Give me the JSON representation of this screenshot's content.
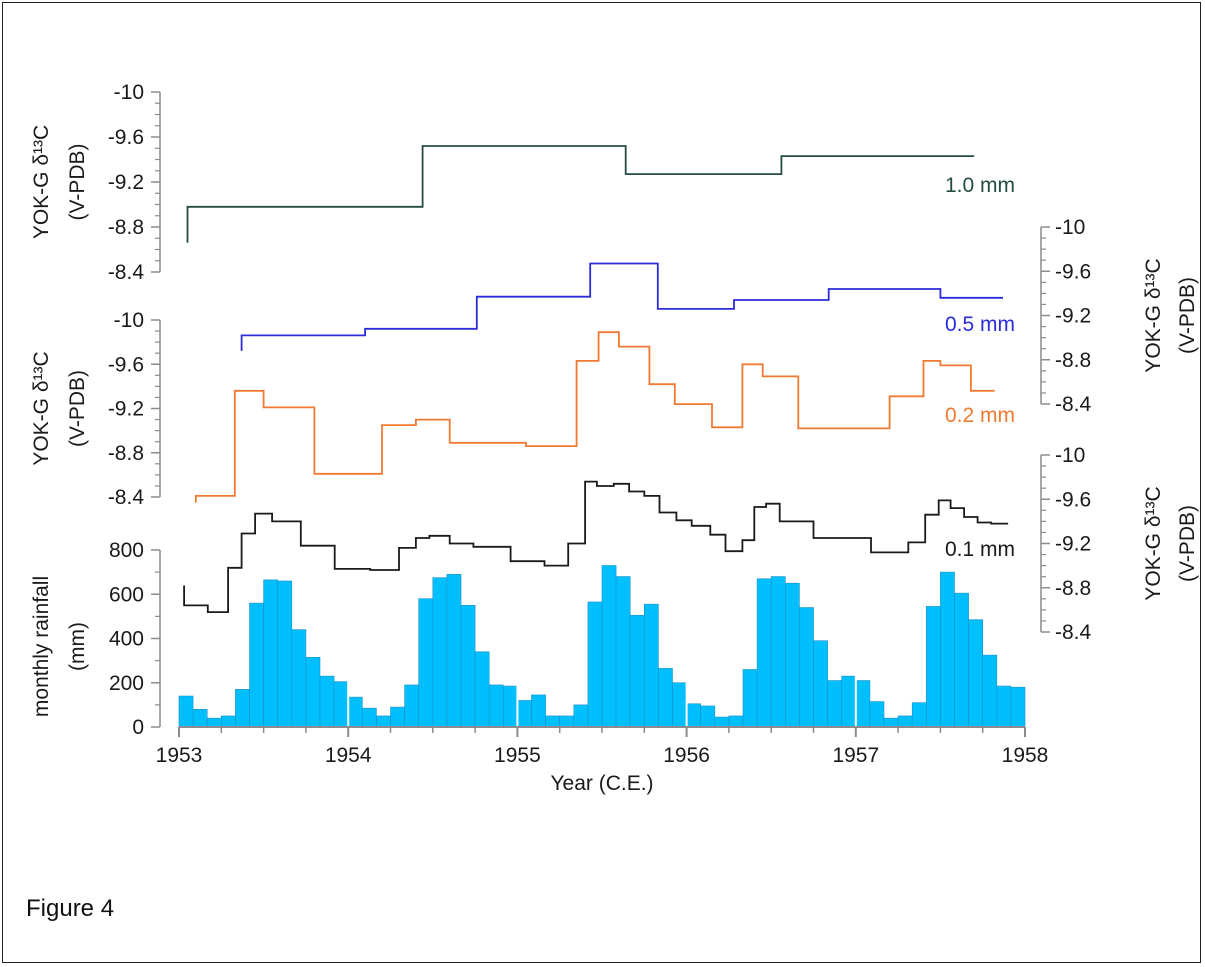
{
  "figure_label": "Figure 4",
  "colors": {
    "axis": "#8c8c8c",
    "text": "#1a1a1a"
  },
  "chart_data": {
    "type": "line",
    "xlabel": "Year (C.E.)",
    "x_ticks": [
      "1953",
      "1954",
      "1955",
      "1956",
      "1957",
      "1958"
    ],
    "xlim": [
      1953,
      1958
    ],
    "rainfall": {
      "type": "bar",
      "ylabel_lines": [
        "monthly rainfall",
        "(mm)"
      ],
      "y_ticks": [
        "0",
        "200",
        "400",
        "600",
        "800"
      ],
      "ylim": [
        0,
        800
      ],
      "color": "#00bfff",
      "monthly_values": [
        140,
        80,
        40,
        50,
        170,
        560,
        665,
        660,
        440,
        315,
        230,
        205,
        135,
        85,
        50,
        90,
        190,
        580,
        675,
        690,
        550,
        340,
        190,
        185,
        120,
        145,
        50,
        50,
        100,
        565,
        730,
        680,
        505,
        555,
        265,
        200,
        105,
        95,
        45,
        50,
        260,
        670,
        680,
        650,
        540,
        390,
        210,
        230,
        210,
        115,
        40,
        50,
        110,
        545,
        700,
        605,
        485,
        325,
        185,
        180
      ]
    },
    "series": [
      {
        "name": "1.0 mm",
        "label": "1.0 mm",
        "color": "#244c44",
        "axis": "top-left",
        "x": [
          1953.05,
          1953.05,
          1954.44,
          1954.44,
          1955.64,
          1955.64,
          1956.56,
          1956.56,
          1957.7
        ],
        "y": [
          -8.66,
          -8.98,
          -8.98,
          -9.52,
          -9.52,
          -9.27,
          -9.27,
          -9.43,
          -9.43
        ]
      },
      {
        "name": "0.5 mm",
        "label": "0.5 mm",
        "color": "#2b2bd9",
        "axis": "right-middle",
        "x": [
          1953.37,
          1953.37,
          1954.1,
          1954.1,
          1954.76,
          1954.76,
          1955.43,
          1955.43,
          1955.83,
          1955.83,
          1956.28,
          1956.28,
          1956.84,
          1956.84,
          1957.5,
          1957.5,
          1957.87
        ],
        "y": [
          -8.88,
          -9.02,
          -9.02,
          -9.08,
          -9.08,
          -9.37,
          -9.37,
          -9.67,
          -9.67,
          -9.26,
          -9.26,
          -9.34,
          -9.34,
          -9.44,
          -9.44,
          -9.36,
          -9.36
        ]
      },
      {
        "name": "0.2 mm",
        "label": "0.2 mm",
        "color": "#f07a32",
        "axis": "middle-left",
        "x": [
          1953.1,
          1953.1,
          1953.33,
          1953.33,
          1953.5,
          1953.5,
          1953.8,
          1953.8,
          1954.2,
          1954.2,
          1954.4,
          1954.4,
          1954.6,
          1954.6,
          1955.05,
          1955.05,
          1955.35,
          1955.35,
          1955.48,
          1955.48,
          1955.6,
          1955.6,
          1955.78,
          1955.78,
          1955.93,
          1955.93,
          1956.15,
          1956.15,
          1956.33,
          1956.33,
          1956.45,
          1956.45,
          1956.66,
          1956.66,
          1957.2,
          1957.2,
          1957.4,
          1957.4,
          1957.5,
          1957.5,
          1957.68,
          1957.68,
          1957.82
        ],
        "y": [
          -8.35,
          -8.41,
          -8.41,
          -9.36,
          -9.36,
          -9.21,
          -9.21,
          -8.61,
          -8.61,
          -9.05,
          -9.05,
          -9.1,
          -9.1,
          -8.89,
          -8.89,
          -8.86,
          -8.86,
          -9.63,
          -9.63,
          -9.89,
          -9.89,
          -9.76,
          -9.76,
          -9.42,
          -9.42,
          -9.24,
          -9.24,
          -9.03,
          -9.03,
          -9.6,
          -9.6,
          -9.49,
          -9.49,
          -9.02,
          -9.02,
          -9.31,
          -9.31,
          -9.63,
          -9.63,
          -9.59,
          -9.59,
          -9.36,
          -9.36
        ]
      },
      {
        "name": "0.1 mm",
        "label": "0.1 mm",
        "color": "#1a1a1a",
        "axis": "right-bottom",
        "x": [
          1953.03,
          1953.03,
          1953.17,
          1953.17,
          1953.29,
          1953.29,
          1953.37,
          1953.37,
          1953.45,
          1953.45,
          1953.55,
          1953.55,
          1953.72,
          1953.72,
          1953.92,
          1953.92,
          1954.13,
          1954.13,
          1954.3,
          1954.3,
          1954.4,
          1954.4,
          1954.48,
          1954.48,
          1954.6,
          1954.6,
          1954.74,
          1954.74,
          1954.96,
          1954.96,
          1955.16,
          1955.16,
          1955.3,
          1955.3,
          1955.4,
          1955.4,
          1955.47,
          1955.47,
          1955.57,
          1955.57,
          1955.66,
          1955.66,
          1955.75,
          1955.75,
          1955.84,
          1955.84,
          1955.94,
          1955.94,
          1956.03,
          1956.03,
          1956.14,
          1956.14,
          1956.23,
          1956.23,
          1956.33,
          1956.33,
          1956.4,
          1956.4,
          1956.47,
          1956.47,
          1956.55,
          1956.55,
          1956.75,
          1956.75,
          1957.09,
          1957.09,
          1957.31,
          1957.31,
          1957.41,
          1957.41,
          1957.49,
          1957.49,
          1957.56,
          1957.56,
          1957.64,
          1957.64,
          1957.72,
          1957.72,
          1957.8,
          1957.8,
          1957.9
        ],
        "y": [
          -8.82,
          -8.64,
          -8.64,
          -8.58,
          -8.58,
          -8.98,
          -8.98,
          -9.29,
          -9.29,
          -9.47,
          -9.47,
          -9.4,
          -9.4,
          -9.18,
          -9.18,
          -8.97,
          -8.97,
          -8.96,
          -8.96,
          -9.16,
          -9.16,
          -9.25,
          -9.25,
          -9.27,
          -9.27,
          -9.2,
          -9.2,
          -9.17,
          -9.17,
          -9.04,
          -9.04,
          -9.0,
          -9.0,
          -9.2,
          -9.2,
          -9.76,
          -9.76,
          -9.72,
          -9.72,
          -9.74,
          -9.74,
          -9.67,
          -9.67,
          -9.63,
          -9.63,
          -9.48,
          -9.48,
          -9.41,
          -9.41,
          -9.36,
          -9.36,
          -9.28,
          -9.28,
          -9.13,
          -9.13,
          -9.23,
          -9.23,
          -9.53,
          -9.53,
          -9.56,
          -9.56,
          -9.4,
          -9.4,
          -9.25,
          -9.25,
          -9.12,
          -9.12,
          -9.21,
          -9.21,
          -9.46,
          -9.46,
          -9.59,
          -9.59,
          -9.52,
          -9.52,
          -9.44,
          -9.44,
          -9.39,
          -9.39,
          -9.38,
          -9.38
        ]
      }
    ],
    "d13c_axes": [
      {
        "id": "top-left",
        "side": "left",
        "ylabel_lines": [
          "YOK-G δ¹³C",
          "(V-PDB)"
        ],
        "y_ticks": [
          "-10",
          "-9.6",
          "-9.2",
          "-8.8",
          "-8.4"
        ],
        "ylim": [
          -8.4,
          -10
        ]
      },
      {
        "id": "right-middle",
        "side": "right",
        "ylabel_lines": [
          "YOK-G δ¹³C",
          "(V-PDB)"
        ],
        "y_ticks": [
          "-10",
          "-9.6",
          "-9.2",
          "-8.8",
          "-8.4"
        ],
        "ylim": [
          -8.4,
          -10
        ]
      },
      {
        "id": "middle-left",
        "side": "left",
        "ylabel_lines": [
          "YOK-G δ¹³C",
          "(V-PDB)"
        ],
        "y_ticks": [
          "-10",
          "-9.6",
          "-9.2",
          "-8.8",
          "-8.4"
        ],
        "ylim": [
          -8.4,
          -10
        ]
      },
      {
        "id": "right-bottom",
        "side": "right",
        "ylabel_lines": [
          "YOK-G δ¹³C",
          "(V-PDB)"
        ],
        "y_ticks": [
          "-10",
          "-9.6",
          "-9.2",
          "-8.8",
          "-8.4"
        ],
        "ylim": [
          -8.4,
          -10
        ]
      }
    ]
  }
}
